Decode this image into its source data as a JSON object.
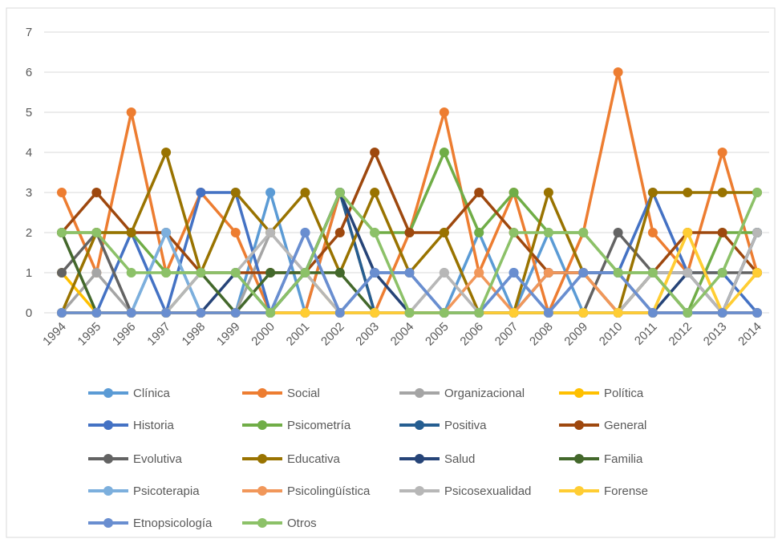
{
  "chart_data": {
    "type": "line",
    "x": [
      "1994",
      "1995",
      "1996",
      "1997",
      "1998",
      "1999",
      "2000",
      "2001",
      "2002",
      "2003",
      "2004",
      "2005",
      "2006",
      "2007",
      "2008",
      "2009",
      "2010",
      "2011",
      "2012",
      "2013",
      "2014"
    ],
    "ylim": [
      0,
      7
    ],
    "yticks": [
      0,
      1,
      2,
      3,
      4,
      5,
      6,
      7
    ],
    "grid": true,
    "legend": "bottom",
    "series": [
      {
        "name": "Clínica",
        "color": "#5b9bd5",
        "values": [
          0,
          0,
          0,
          2,
          0,
          0,
          3,
          0,
          3,
          0,
          0,
          0,
          2,
          0,
          2,
          0,
          0,
          0,
          0,
          0,
          0
        ]
      },
      {
        "name": "Social",
        "color": "#ed7d31",
        "values": [
          3,
          1,
          5,
          1,
          3,
          2,
          0,
          0,
          3,
          0,
          2,
          5,
          1,
          3,
          0,
          2,
          6,
          2,
          1,
          4,
          1
        ]
      },
      {
        "name": "Organizacional",
        "color": "#a5a5a5",
        "values": [
          0,
          1,
          0,
          0,
          0,
          0,
          2,
          1,
          0,
          1,
          0,
          1,
          0,
          0,
          0,
          0,
          0,
          1,
          1,
          0,
          2
        ]
      },
      {
        "name": "Política",
        "color": "#ffc000",
        "values": [
          1,
          0,
          0,
          0,
          0,
          0,
          0,
          1,
          0,
          0,
          0,
          0,
          0,
          0,
          0,
          0,
          0,
          0,
          2,
          0,
          1
        ]
      },
      {
        "name": "Historia",
        "color": "#4472c4",
        "values": [
          0,
          0,
          2,
          0,
          3,
          3,
          0,
          2,
          0,
          1,
          1,
          0,
          0,
          1,
          0,
          1,
          1,
          3,
          1,
          1,
          0
        ]
      },
      {
        "name": "Psicometría",
        "color": "#70ad47",
        "values": [
          2,
          2,
          2,
          1,
          1,
          1,
          0,
          1,
          3,
          2,
          2,
          4,
          2,
          3,
          2,
          2,
          1,
          1,
          0,
          2,
          2
        ]
      },
      {
        "name": "Positiva",
        "color": "#255e91",
        "values": [
          0,
          0,
          0,
          0,
          0,
          0,
          0,
          1,
          3,
          0,
          0,
          0,
          0,
          0,
          0,
          0,
          0,
          0,
          0,
          0,
          2
        ]
      },
      {
        "name": "General",
        "color": "#9e480e",
        "values": [
          2,
          3,
          2,
          2,
          1,
          1,
          1,
          1,
          2,
          4,
          2,
          2,
          3,
          2,
          1,
          1,
          0,
          1,
          2,
          2,
          1
        ]
      },
      {
        "name": "Evolutiva",
        "color": "#636363",
        "values": [
          1,
          2,
          0,
          0,
          0,
          0,
          0,
          0,
          0,
          0,
          0,
          0,
          0,
          0,
          0,
          0,
          2,
          1,
          1,
          1,
          1
        ]
      },
      {
        "name": "Educativa",
        "color": "#997300",
        "values": [
          0,
          2,
          2,
          4,
          1,
          3,
          2,
          3,
          1,
          3,
          1,
          2,
          0,
          0,
          3,
          1,
          0,
          3,
          3,
          3,
          3
        ]
      },
      {
        "name": "Salud",
        "color": "#264478",
        "values": [
          0,
          0,
          0,
          0,
          0,
          1,
          0,
          1,
          3,
          1,
          0,
          0,
          0,
          0,
          1,
          1,
          1,
          0,
          1,
          0,
          2
        ]
      },
      {
        "name": "Familia",
        "color": "#43682b",
        "values": [
          2,
          0,
          0,
          0,
          1,
          0,
          1,
          1,
          1,
          0,
          0,
          0,
          0,
          0,
          0,
          0,
          0,
          1,
          0,
          0,
          0
        ]
      },
      {
        "name": "Psicoterapia",
        "color": "#7cafdd",
        "values": [
          0,
          0,
          0,
          2,
          0,
          0,
          0,
          0,
          0,
          0,
          0,
          0,
          0,
          1,
          0,
          0,
          0,
          0,
          0,
          0,
          0
        ]
      },
      {
        "name": "Psicolingüística",
        "color": "#f1975a",
        "values": [
          0,
          0,
          0,
          0,
          0,
          0,
          0,
          0,
          0,
          0,
          0,
          0,
          1,
          0,
          1,
          1,
          0,
          0,
          0,
          0,
          0
        ]
      },
      {
        "name": "Psicosexualidad",
        "color": "#b7b7b7",
        "values": [
          0,
          0,
          0,
          0,
          1,
          1,
          2,
          1,
          0,
          0,
          0,
          1,
          0,
          0,
          0,
          0,
          0,
          1,
          1,
          0,
          2
        ]
      },
      {
        "name": "Forense",
        "color": "#ffcd33",
        "values": [
          0,
          0,
          0,
          0,
          0,
          0,
          0,
          0,
          0,
          0,
          0,
          0,
          0,
          0,
          0,
          0,
          0,
          0,
          2,
          0,
          1
        ]
      },
      {
        "name": "Etnopsicología",
        "color": "#698ed0",
        "values": [
          0,
          0,
          0,
          0,
          0,
          0,
          0,
          2,
          0,
          1,
          1,
          0,
          0,
          1,
          0,
          1,
          1,
          0,
          0,
          0,
          0
        ]
      },
      {
        "name": "Otros",
        "color": "#8cc168",
        "values": [
          2,
          2,
          1,
          1,
          1,
          1,
          0,
          1,
          3,
          2,
          0,
          0,
          0,
          2,
          2,
          2,
          1,
          1,
          0,
          1,
          3
        ]
      }
    ]
  }
}
